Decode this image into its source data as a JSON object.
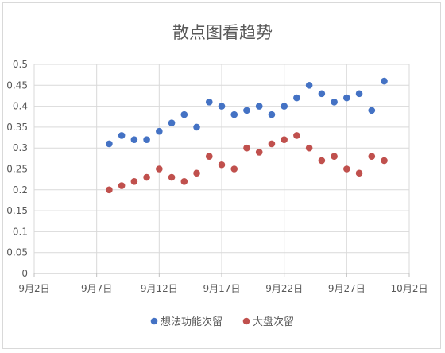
{
  "chart_data": {
    "type": "scatter",
    "title": "散点图看趋势",
    "xlabel": "",
    "ylabel": "",
    "x_ticks": [
      "9月2日",
      "9月7日",
      "9月12日",
      "9月17日",
      "9月22日",
      "9月27日",
      "10月2日"
    ],
    "y_ticks": [
      "0",
      "0.05",
      "0.1",
      "0.15",
      "0.2",
      "0.25",
      "0.3",
      "0.35",
      "0.4",
      "0.45",
      "0.5"
    ],
    "xlim": [
      "2023-09-02",
      "2023-10-02"
    ],
    "ylim": [
      0,
      0.5
    ],
    "grid": true,
    "legend_position": "bottom",
    "x": [
      "2023-09-08",
      "2023-09-09",
      "2023-09-10",
      "2023-09-11",
      "2023-09-12",
      "2023-09-13",
      "2023-09-14",
      "2023-09-15",
      "2023-09-16",
      "2023-09-17",
      "2023-09-18",
      "2023-09-19",
      "2023-09-20",
      "2023-09-21",
      "2023-09-22",
      "2023-09-23",
      "2023-09-24",
      "2023-09-25",
      "2023-09-26",
      "2023-09-27",
      "2023-09-28",
      "2023-09-29",
      "2023-09-30"
    ],
    "series": [
      {
        "name": "想法功能次留",
        "color": "#4472c4",
        "values": [
          0.31,
          0.33,
          0.32,
          0.32,
          0.34,
          0.36,
          0.38,
          0.35,
          0.41,
          0.4,
          0.38,
          0.39,
          0.4,
          0.38,
          0.4,
          0.42,
          0.45,
          0.43,
          0.41,
          0.42,
          0.43,
          0.39,
          0.46
        ]
      },
      {
        "name": "大盘次留",
        "color": "#c0504d",
        "values": [
          0.2,
          0.21,
          0.22,
          0.23,
          0.25,
          0.23,
          0.22,
          0.24,
          0.28,
          0.26,
          0.25,
          0.3,
          0.29,
          0.31,
          0.32,
          0.33,
          0.3,
          0.27,
          0.28,
          0.25,
          0.24,
          0.28,
          0.27
        ]
      }
    ]
  }
}
